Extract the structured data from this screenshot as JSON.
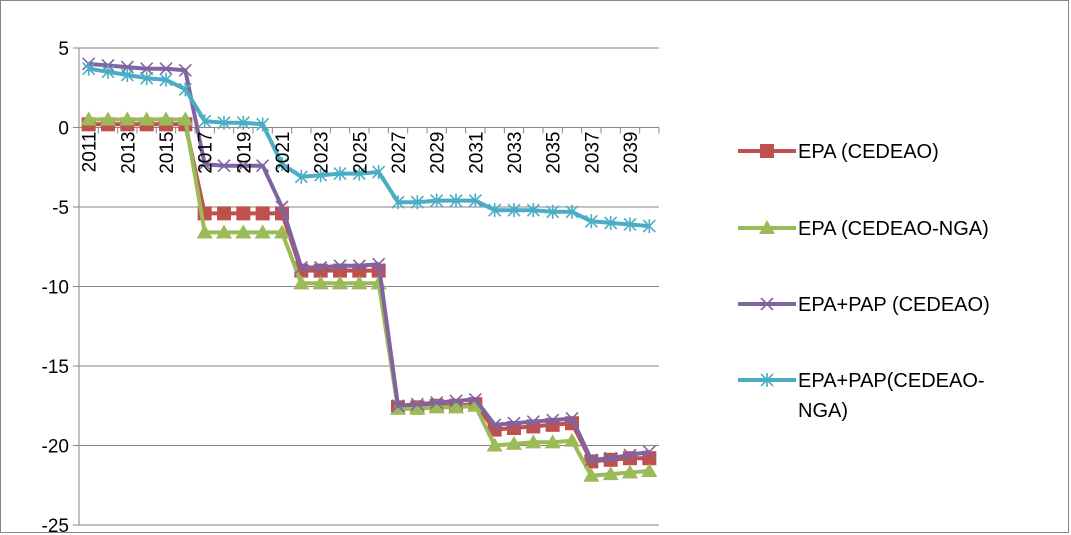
{
  "chart_data": {
    "type": "line",
    "x": [
      2011,
      2012,
      2013,
      2014,
      2015,
      2016,
      2017,
      2018,
      2019,
      2020,
      2021,
      2022,
      2023,
      2024,
      2025,
      2026,
      2027,
      2028,
      2029,
      2030,
      2031,
      2032,
      2033,
      2034,
      2035,
      2036,
      2037,
      2038,
      2039,
      2040
    ],
    "x_tick_labels": [
      "2011",
      "2013",
      "2015",
      "2017",
      "2019",
      "2021",
      "2023",
      "2025",
      "2027",
      "2029",
      "2031",
      "2033",
      "2035",
      "2037",
      "2039"
    ],
    "y_ticks": [
      "5",
      "0",
      "-5",
      "-10",
      "-15",
      "-20",
      "-25"
    ],
    "ylim": [
      -25,
      5
    ],
    "grid": "horizontal",
    "legend_position": "right",
    "series": [
      {
        "name": "EPA (CEDEAO)",
        "color": "#c0504d",
        "marker": "square",
        "values": [
          0.2,
          0.2,
          0.2,
          0.2,
          0.2,
          0.2,
          -5.4,
          -5.4,
          -5.4,
          -5.4,
          -5.4,
          -9.0,
          -9.0,
          -9.0,
          -9.0,
          -9.0,
          -17.6,
          -17.6,
          -17.5,
          -17.5,
          -17.4,
          -19.0,
          -18.9,
          -18.8,
          -18.7,
          -18.6,
          -21.0,
          -20.9,
          -20.8,
          -20.8
        ]
      },
      {
        "name": "EPA (CEDEAO-NGA)",
        "color": "#9bbb59",
        "marker": "triangle",
        "values": [
          0.5,
          0.5,
          0.5,
          0.5,
          0.5,
          0.5,
          -6.6,
          -6.6,
          -6.6,
          -6.6,
          -6.6,
          -9.8,
          -9.8,
          -9.8,
          -9.8,
          -9.8,
          -17.7,
          -17.7,
          -17.6,
          -17.6,
          -17.5,
          -20.0,
          -19.9,
          -19.8,
          -19.8,
          -19.7,
          -21.9,
          -21.8,
          -21.7,
          -21.6
        ]
      },
      {
        "name": "EPA+PAP (CEDEAO)",
        "color": "#8064a2",
        "marker": "x",
        "values": [
          4.0,
          3.9,
          3.8,
          3.7,
          3.7,
          3.6,
          -2.3,
          -2.4,
          -2.4,
          -2.4,
          -5.0,
          -8.8,
          -8.8,
          -8.7,
          -8.7,
          -8.6,
          -17.5,
          -17.4,
          -17.3,
          -17.2,
          -17.1,
          -18.7,
          -18.6,
          -18.5,
          -18.4,
          -18.3,
          -20.9,
          -20.8,
          -20.6,
          -20.4
        ]
      },
      {
        "name": "EPA+PAP(CEDEAO-NGA)",
        "legend_lines": [
          "EPA+PAP(CEDEAO-",
          "NGA)"
        ],
        "color": "#4bacc6",
        "marker": "asterisk",
        "values": [
          3.7,
          3.5,
          3.3,
          3.1,
          3.0,
          2.4,
          0.4,
          0.3,
          0.3,
          0.2,
          -2.3,
          -3.1,
          -3.0,
          -2.9,
          -2.9,
          -2.8,
          -4.7,
          -4.7,
          -4.6,
          -4.6,
          -4.6,
          -5.2,
          -5.2,
          -5.2,
          -5.3,
          -5.3,
          -5.9,
          -6.0,
          -6.1,
          -6.2
        ]
      }
    ]
  }
}
